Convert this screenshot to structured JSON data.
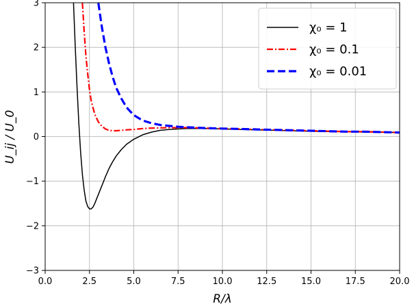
{
  "chart_data": {
    "type": "line",
    "title": "",
    "xlabel": "R/λ",
    "ylabel": "U_ij / U_0",
    "xlim": [
      0,
      20
    ],
    "ylim": [
      -3,
      3
    ],
    "x_ticks": [
      0,
      2.5,
      5,
      7.5,
      10,
      12.5,
      15,
      17.5,
      20
    ],
    "x_tick_labels": [
      "0.0",
      "2.5",
      "5.0",
      "7.5",
      "10.0",
      "12.5",
      "15.0",
      "17.5",
      "20.0"
    ],
    "y_ticks": [
      -3,
      -2,
      -1,
      0,
      1,
      2,
      3
    ],
    "y_tick_labels": [
      "−3",
      "−2",
      "−1",
      "0",
      "1",
      "2",
      "3"
    ],
    "grid": true,
    "legend_position": "top-right",
    "series": [
      {
        "name": "χ₀ = 1",
        "color": "#000000",
        "style": "solid",
        "x": [
          1.6,
          1.7,
          1.8,
          1.9,
          2.0,
          2.1,
          2.2,
          2.3,
          2.4,
          2.5,
          2.6,
          2.7,
          2.8,
          2.9,
          3.0,
          3.2,
          3.4,
          3.6,
          3.8,
          4.0,
          4.3,
          4.6,
          5.0,
          5.5,
          6.0,
          6.5,
          7.0,
          7.5,
          8.0,
          8.5,
          9.0,
          10.0,
          11.0,
          12.0,
          13.0,
          14.0,
          15.0,
          16.0,
          17.0,
          18.0,
          19.0,
          20.0
        ],
        "y": [
          3.0,
          2.0,
          1.1,
          0.3,
          -0.35,
          -0.85,
          -1.2,
          -1.45,
          -1.57,
          -1.62,
          -1.62,
          -1.58,
          -1.5,
          -1.4,
          -1.3,
          -1.1,
          -0.9,
          -0.72,
          -0.57,
          -0.44,
          -0.29,
          -0.17,
          -0.06,
          0.04,
          0.1,
          0.14,
          0.16,
          0.17,
          0.18,
          0.18,
          0.18,
          0.17,
          0.16,
          0.15,
          0.14,
          0.13,
          0.12,
          0.11,
          0.11,
          0.1,
          0.1,
          0.09
        ]
      },
      {
        "name": "χ₀ = 0.1",
        "color": "#ff0000",
        "style": "dashdot",
        "x": [
          2.1,
          2.2,
          2.3,
          2.4,
          2.5,
          2.6,
          2.8,
          3.0,
          3.2,
          3.4,
          3.6,
          3.8,
          4.0,
          4.3,
          4.6,
          5.0,
          5.5,
          6.0,
          7.0,
          8.0,
          9.0,
          10.0,
          11.0,
          12.0,
          13.0,
          14.0,
          15.0,
          16.0,
          17.0,
          18.0,
          19.0,
          20.0
        ],
        "y": [
          3.0,
          2.35,
          1.8,
          1.4,
          1.05,
          0.8,
          0.5,
          0.33,
          0.23,
          0.17,
          0.14,
          0.13,
          0.13,
          0.14,
          0.15,
          0.16,
          0.18,
          0.19,
          0.2,
          0.2,
          0.19,
          0.18,
          0.17,
          0.16,
          0.15,
          0.14,
          0.13,
          0.12,
          0.11,
          0.11,
          0.1,
          0.09
        ]
      },
      {
        "name": "χ₀ = 0.01",
        "color": "#0000ff",
        "style": "dashed",
        "x": [
          3.0,
          3.2,
          3.4,
          3.6,
          3.8,
          4.0,
          4.3,
          4.6,
          5.0,
          5.5,
          6.0,
          6.5,
          7.0,
          7.5,
          8.0,
          8.5,
          9.0,
          10.0,
          11.0,
          12.0,
          13.0,
          14.0,
          15.0,
          16.0,
          17.0,
          18.0,
          19.0,
          20.0
        ],
        "y": [
          3.0,
          2.45,
          2.0,
          1.65,
          1.35,
          1.1,
          0.85,
          0.65,
          0.48,
          0.36,
          0.3,
          0.26,
          0.24,
          0.22,
          0.21,
          0.2,
          0.19,
          0.18,
          0.17,
          0.16,
          0.15,
          0.14,
          0.13,
          0.12,
          0.11,
          0.11,
          0.1,
          0.09
        ]
      }
    ]
  }
}
